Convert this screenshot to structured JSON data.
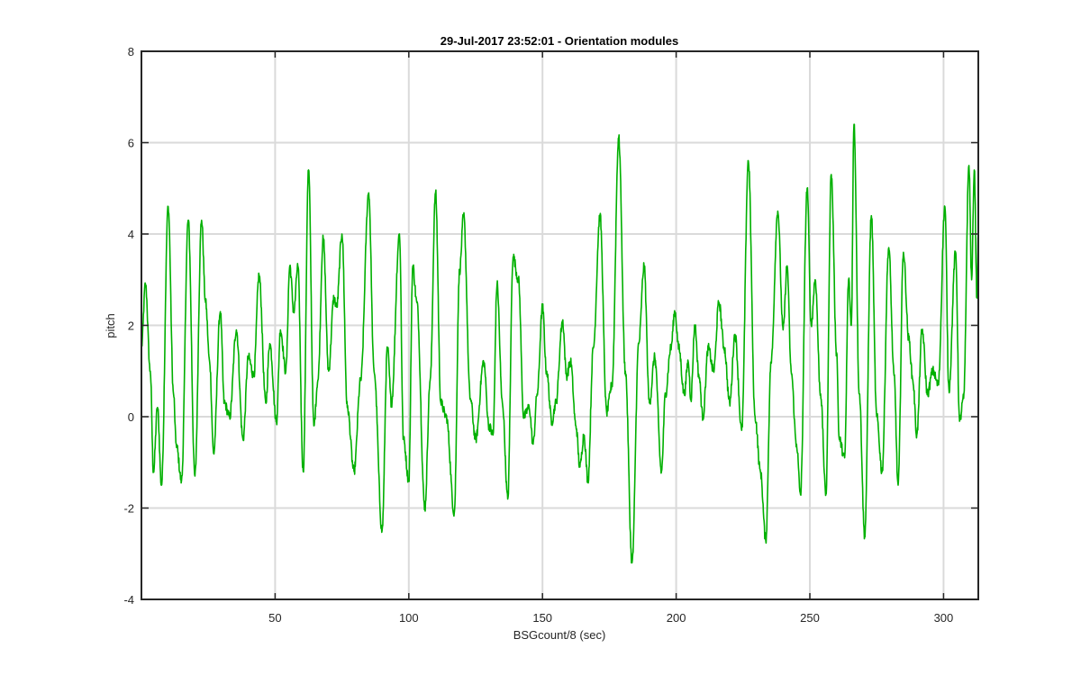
{
  "chart_data": {
    "type": "line",
    "title": "29-Jul-2017 23:52:01 - Orientation modules",
    "xlabel": "BSGcount/8 (sec)",
    "ylabel": "pitch",
    "xlim": [
      0,
      313
    ],
    "ylim": [
      -4,
      8
    ],
    "xticks": [
      50,
      100,
      150,
      200,
      250,
      300
    ],
    "yticks": [
      -4,
      -2,
      0,
      2,
      4,
      6,
      8
    ],
    "grid": true,
    "series": [
      {
        "name": "",
        "color": "#00b000",
        "peaks": [
          [
            0,
            1.5
          ],
          [
            1.5,
            2.9
          ],
          [
            3.3,
            1.0
          ],
          [
            4.5,
            -1.2
          ],
          [
            6,
            0.2
          ],
          [
            7.5,
            -1.5
          ],
          [
            10,
            4.6
          ],
          [
            12,
            0.5
          ],
          [
            13,
            -0.6
          ],
          [
            15,
            -1.4
          ],
          [
            17.5,
            4.3
          ],
          [
            20,
            -1.3
          ],
          [
            22.5,
            4.3
          ],
          [
            24,
            2.5
          ],
          [
            25.5,
            1.2
          ],
          [
            27,
            -0.8
          ],
          [
            29.5,
            2.3
          ],
          [
            31,
            0.3
          ],
          [
            33,
            0.0
          ],
          [
            35.5,
            1.9
          ],
          [
            38,
            -0.5
          ],
          [
            40,
            1.3
          ],
          [
            42,
            0.9
          ],
          [
            44,
            3.1
          ],
          [
            46.5,
            0.3
          ],
          [
            48,
            1.6
          ],
          [
            50.5,
            -0.1
          ],
          [
            52,
            1.9
          ],
          [
            54,
            1.0
          ],
          [
            55.5,
            3.3
          ],
          [
            57,
            2.3
          ],
          [
            58.5,
            3.3
          ],
          [
            60.5,
            -1.2
          ],
          [
            62.5,
            5.4
          ],
          [
            64.5,
            -0.2
          ],
          [
            66,
            0.8
          ],
          [
            68,
            3.9
          ],
          [
            70,
            1.0
          ],
          [
            72,
            2.6
          ],
          [
            73,
            2.4
          ],
          [
            75,
            4.0
          ],
          [
            77,
            0.2
          ],
          [
            79.5,
            -1.2
          ],
          [
            82,
            0.8
          ],
          [
            85,
            4.9
          ],
          [
            87,
            1.0
          ],
          [
            90,
            -2.5
          ],
          [
            92,
            1.5
          ],
          [
            93.5,
            0.3
          ],
          [
            96.5,
            4.0
          ],
          [
            98,
            -0.5
          ],
          [
            100,
            -1.4
          ],
          [
            101.5,
            3.3
          ],
          [
            103,
            2.5
          ],
          [
            106,
            -2.0
          ],
          [
            108,
            0.8
          ],
          [
            110,
            4.9
          ],
          [
            112,
            0.3
          ],
          [
            114,
            0.0
          ],
          [
            117,
            -2.1
          ],
          [
            119,
            3.2
          ],
          [
            120.5,
            4.4
          ],
          [
            123,
            0.4
          ],
          [
            125,
            -0.5
          ],
          [
            128,
            1.2
          ],
          [
            130,
            -0.2
          ],
          [
            131.5,
            -0.4
          ],
          [
            133,
            2.9
          ],
          [
            135,
            0.3
          ],
          [
            137,
            -1.8
          ],
          [
            139,
            3.5
          ],
          [
            141,
            3.0
          ],
          [
            143,
            0.0
          ],
          [
            145,
            0.2
          ],
          [
            146.5,
            -0.6
          ],
          [
            148,
            0.5
          ],
          [
            150,
            2.4
          ],
          [
            151.5,
            1.0
          ],
          [
            153.5,
            -0.1
          ],
          [
            155,
            0.3
          ],
          [
            157.5,
            2.1
          ],
          [
            159,
            0.9
          ],
          [
            160.5,
            1.2
          ],
          [
            162.5,
            -0.2
          ],
          [
            164,
            -1.1
          ],
          [
            165.5,
            -0.4
          ],
          [
            167,
            -1.4
          ],
          [
            169,
            1.5
          ],
          [
            171.5,
            4.4
          ],
          [
            174,
            0.1
          ],
          [
            176,
            0.7
          ],
          [
            178.5,
            6.1
          ],
          [
            181,
            1.0
          ],
          [
            183.5,
            -3.2
          ],
          [
            186,
            1.6
          ],
          [
            188,
            3.3
          ],
          [
            190,
            0.3
          ],
          [
            192,
            1.3
          ],
          [
            194.5,
            -1.2
          ],
          [
            196,
            0.5
          ],
          [
            198,
            1.5
          ],
          [
            199.5,
            2.3
          ],
          [
            201,
            1.5
          ],
          [
            203,
            0.5
          ],
          [
            204.5,
            1.2
          ],
          [
            205.5,
            0.4
          ],
          [
            207,
            2.0
          ],
          [
            208.5,
            0.9
          ],
          [
            210,
            0.0
          ],
          [
            212,
            1.5
          ],
          [
            214,
            1.0
          ],
          [
            216,
            2.5
          ],
          [
            218,
            1.5
          ],
          [
            220,
            0.3
          ],
          [
            222,
            1.8
          ],
          [
            224.5,
            -0.3
          ],
          [
            227,
            5.6
          ],
          [
            229.5,
            0.0
          ],
          [
            231.5,
            -1.2
          ],
          [
            233.5,
            -2.7
          ],
          [
            235.5,
            1.2
          ],
          [
            238,
            4.5
          ],
          [
            240,
            1.9
          ],
          [
            241.5,
            3.3
          ],
          [
            243,
            1.0
          ],
          [
            245,
            -0.6
          ],
          [
            246.5,
            -1.7
          ],
          [
            249,
            5.0
          ],
          [
            250.5,
            2.0
          ],
          [
            252,
            3.0
          ],
          [
            254,
            0.5
          ],
          [
            256,
            -1.7
          ],
          [
            258,
            5.3
          ],
          [
            260,
            1.4
          ],
          [
            261,
            -0.5
          ],
          [
            263,
            -0.9
          ],
          [
            264.5,
            3.0
          ],
          [
            265.5,
            2.0
          ],
          [
            266.5,
            6.4
          ],
          [
            268.5,
            0.5
          ],
          [
            270.5,
            -2.6
          ],
          [
            273,
            4.4
          ],
          [
            275,
            0.0
          ],
          [
            277,
            -1.2
          ],
          [
            279.5,
            3.7
          ],
          [
            281.5,
            0.9
          ],
          [
            283,
            -1.5
          ],
          [
            285,
            3.6
          ],
          [
            287,
            1.7
          ],
          [
            288.5,
            0.8
          ],
          [
            290,
            -0.4
          ],
          [
            292,
            1.9
          ],
          [
            294,
            0.5
          ],
          [
            296,
            1.0
          ],
          [
            298,
            0.7
          ],
          [
            300.5,
            4.6
          ],
          [
            302,
            0.6
          ],
          [
            304.5,
            3.6
          ],
          [
            306,
            -0.1
          ],
          [
            307.5,
            0.4
          ],
          [
            309.5,
            5.5
          ],
          [
            310.5,
            3.0
          ],
          [
            311.5,
            5.4
          ],
          [
            312.5,
            2.6
          ],
          [
            313,
            4.0
          ]
        ]
      }
    ]
  }
}
